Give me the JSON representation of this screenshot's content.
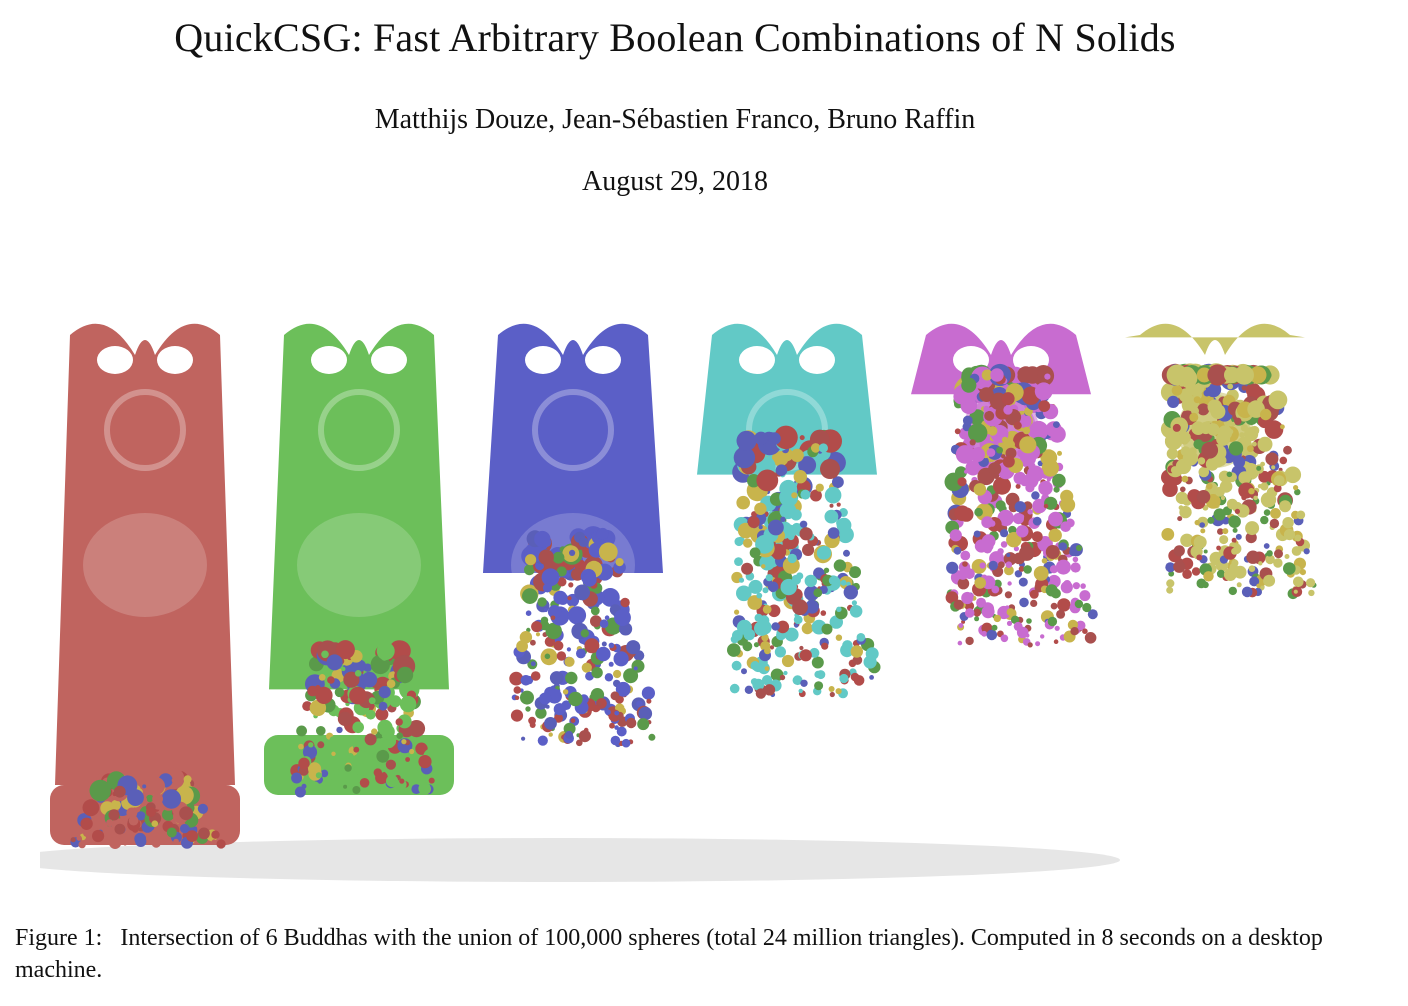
{
  "paper": {
    "title": "QuickCSG: Fast Arbitrary Boolean Combinations of N Solids",
    "authors": "Matthijs Douze, Jean-Sébastien Franco, Bruno Raffin",
    "date": "August 29, 2018"
  },
  "figure": {
    "label": "Figure 1:",
    "caption": "Intersection of 6 Buddhas with the union of 100,000 spheres (total 24 million triangles). Computed in 8 seconds on a desktop machine.",
    "statues": [
      {
        "color": "#c0645f",
        "erosion": 0.05
      },
      {
        "color": "#6cbf5a",
        "erosion": 0.22
      },
      {
        "color": "#5b5fc7",
        "erosion": 0.4
      },
      {
        "color": "#62c9c6",
        "erosion": 0.58
      },
      {
        "color": "#c86cd0",
        "erosion": 0.76
      },
      {
        "color": "#c8c46a",
        "erosion": 0.92
      }
    ],
    "sphere_colors": [
      "#a9504e",
      "#5a9a4a",
      "#c8b44c",
      "#5a5fb8",
      "#b24c4a"
    ]
  }
}
